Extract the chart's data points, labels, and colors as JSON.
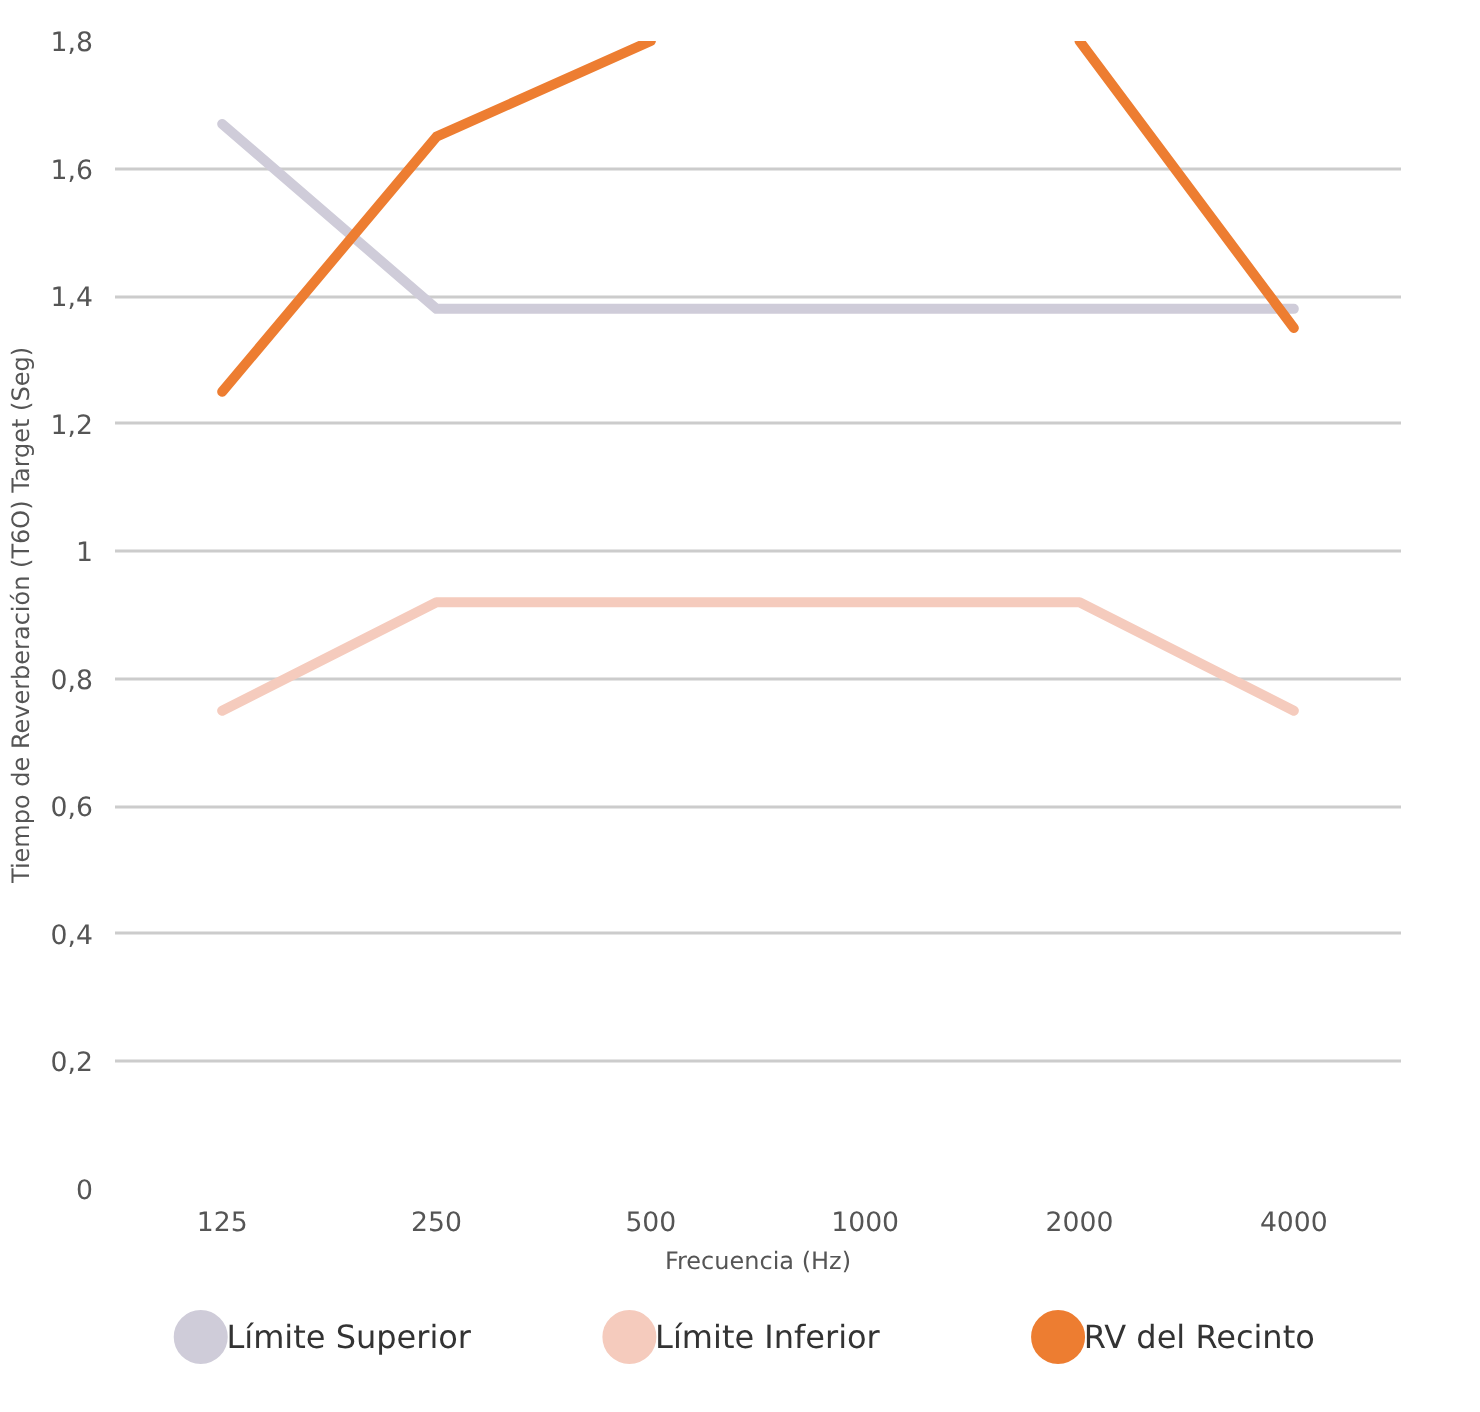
{
  "chart_data": {
    "type": "line",
    "xlabel": "Frecuencia (Hz)",
    "ylabel": "Tiempo de Reverberación (T6O) Target (Seg)",
    "categories": [
      "125",
      "250",
      "500",
      "1000",
      "2000",
      "4000"
    ],
    "series": [
      {
        "name": "Límite Superior",
        "color": "#cfccd9",
        "values": [
          1.67,
          1.38,
          1.38,
          1.38,
          1.38,
          1.38
        ]
      },
      {
        "name": "Límite Inferior",
        "color": "#f5cbbd",
        "values": [
          0.75,
          0.92,
          0.92,
          0.92,
          0.92,
          0.75
        ]
      },
      {
        "name": "RV del Recinto",
        "color": "#ed7d31",
        "values": [
          1.25,
          1.65,
          1.8,
          null,
          1.8,
          1.35
        ]
      }
    ],
    "ylim": [
      0,
      1.8
    ],
    "yticks": [
      {
        "value": 0,
        "label": "0"
      },
      {
        "value": 0.2,
        "label": "0,2"
      },
      {
        "value": 0.4,
        "label": "0,4"
      },
      {
        "value": 0.6,
        "label": "0,6"
      },
      {
        "value": 0.8,
        "label": "0,8"
      },
      {
        "value": 1,
        "label": "1"
      },
      {
        "value": 1.2,
        "label": "1,2"
      },
      {
        "value": 1.4,
        "label": "1,4"
      },
      {
        "value": 1.6,
        "label": "1,6"
      },
      {
        "value": 1.8,
        "label": "1,8"
      }
    ],
    "grid": "y",
    "legend": "bottom",
    "marker": "none",
    "line_style": "solid"
  }
}
